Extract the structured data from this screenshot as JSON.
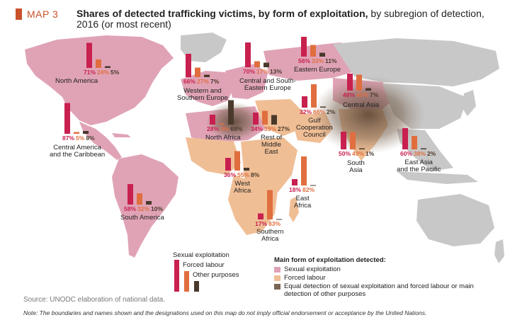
{
  "header": {
    "map_label": "MAP 3",
    "title_bold": "Shares of detected trafficking victims, by form of exploitation,",
    "title_rest": "by subregion of detection, 2016 (or most recent)"
  },
  "colors": {
    "sexual": "#c8204f",
    "forced": "#e06e3f",
    "other": "#4a3a2c",
    "area_sexual": "#e0a3b6",
    "area_forced": "#f0be95",
    "area_equal": "#7a6552",
    "land_gray": "#c8c8c8"
  },
  "regions": [
    {
      "id": "north-america",
      "name": "North America",
      "sexual_pct": "71%",
      "forced_pct": "24%",
      "other_pct": "5%",
      "sexual": 71,
      "forced": 24,
      "other": 5
    },
    {
      "id": "central-america",
      "name": "Central America\nand the Caribbean",
      "sexual_pct": "87%",
      "forced_pct": "5%",
      "other_pct": "8%",
      "sexual": 87,
      "forced": 5,
      "other": 8
    },
    {
      "id": "south-america",
      "name": "South America",
      "sexual_pct": "58%",
      "forced_pct": "32%",
      "other_pct": "10%",
      "sexual": 58,
      "forced": 32,
      "other": 10
    },
    {
      "id": "western-europe",
      "name": "Western and\nSouthern Europe",
      "sexual_pct": "66%",
      "forced_pct": "27%",
      "other_pct": "7%",
      "sexual": 66,
      "forced": 27,
      "other": 7
    },
    {
      "id": "central-se-europe",
      "name": "Central and South-\nEastern Europe",
      "sexual_pct": "70%",
      "forced_pct": "17%",
      "other_pct": "13%",
      "sexual": 70,
      "forced": 17,
      "other": 13
    },
    {
      "id": "eastern-europe",
      "name": "Eastern Europe",
      "sexual_pct": "56%",
      "forced_pct": "33%",
      "other_pct": "11%",
      "sexual": 56,
      "forced": 33,
      "other": 11
    },
    {
      "id": "central-asia",
      "name": "Central Asia",
      "sexual_pct": "48%",
      "forced_pct": "45%",
      "other_pct": "7%",
      "sexual": 48,
      "forced": 45,
      "other": 7
    },
    {
      "id": "north-africa",
      "name": "North Africa",
      "sexual_pct": "28%",
      "forced_pct": "3%",
      "other_pct": "69%",
      "sexual": 28,
      "forced": 3,
      "other": 69
    },
    {
      "id": "middle-east",
      "name": "Rest of\nMiddle\nEast",
      "sexual_pct": "34%",
      "forced_pct": "39%",
      "other_pct": "27%",
      "sexual": 34,
      "forced": 39,
      "other": 27
    },
    {
      "id": "gulf",
      "name": "Gulf\nCooperation\nCouncil",
      "sexual_pct": "32%",
      "forced_pct": "66%",
      "other_pct": "2%",
      "sexual": 32,
      "forced": 66,
      "other": 2
    },
    {
      "id": "south-asia",
      "name": "South\nAsia",
      "sexual_pct": "50%",
      "forced_pct": "49%",
      "other_pct": "1%",
      "sexual": 50,
      "forced": 49,
      "other": 1
    },
    {
      "id": "east-asia",
      "name": "East Asia\nand the Pacific",
      "sexual_pct": "60%",
      "forced_pct": "38%",
      "other_pct": "2%",
      "sexual": 60,
      "forced": 38,
      "other": 2
    },
    {
      "id": "west-africa",
      "name": "West\nAfrica",
      "sexual_pct": "36%",
      "forced_pct": "55%",
      "other_pct": "8%",
      "sexual": 36,
      "forced": 55,
      "other": 8
    },
    {
      "id": "east-africa",
      "name": "East\nAfrica",
      "sexual_pct": "18%",
      "forced_pct": "82%",
      "other_pct": "",
      "sexual": 18,
      "forced": 82,
      "other": 0
    },
    {
      "id": "southern-africa",
      "name": "Southern\nAfrica",
      "sexual_pct": "17%",
      "forced_pct": "83%",
      "other_pct": "",
      "sexual": 17,
      "forced": 83,
      "other": 0
    }
  ],
  "legend_bars": {
    "sexual": "Sexual exploitation",
    "forced": "Forced labour",
    "other": "Other purposes"
  },
  "legend_main": {
    "heading": "Main form of exploitation detected:",
    "sexual": "Sexual exploitation",
    "forced": "Forced labour",
    "equal": "Equal detection of sexual exploitation and forced labour or main detection of other purposes"
  },
  "source": "Source: UNODC elaboration of national data.",
  "note": "Note: The boundaries and names shown and the designations used on this map do not imply official endorsement or acceptance by the United Nations."
}
